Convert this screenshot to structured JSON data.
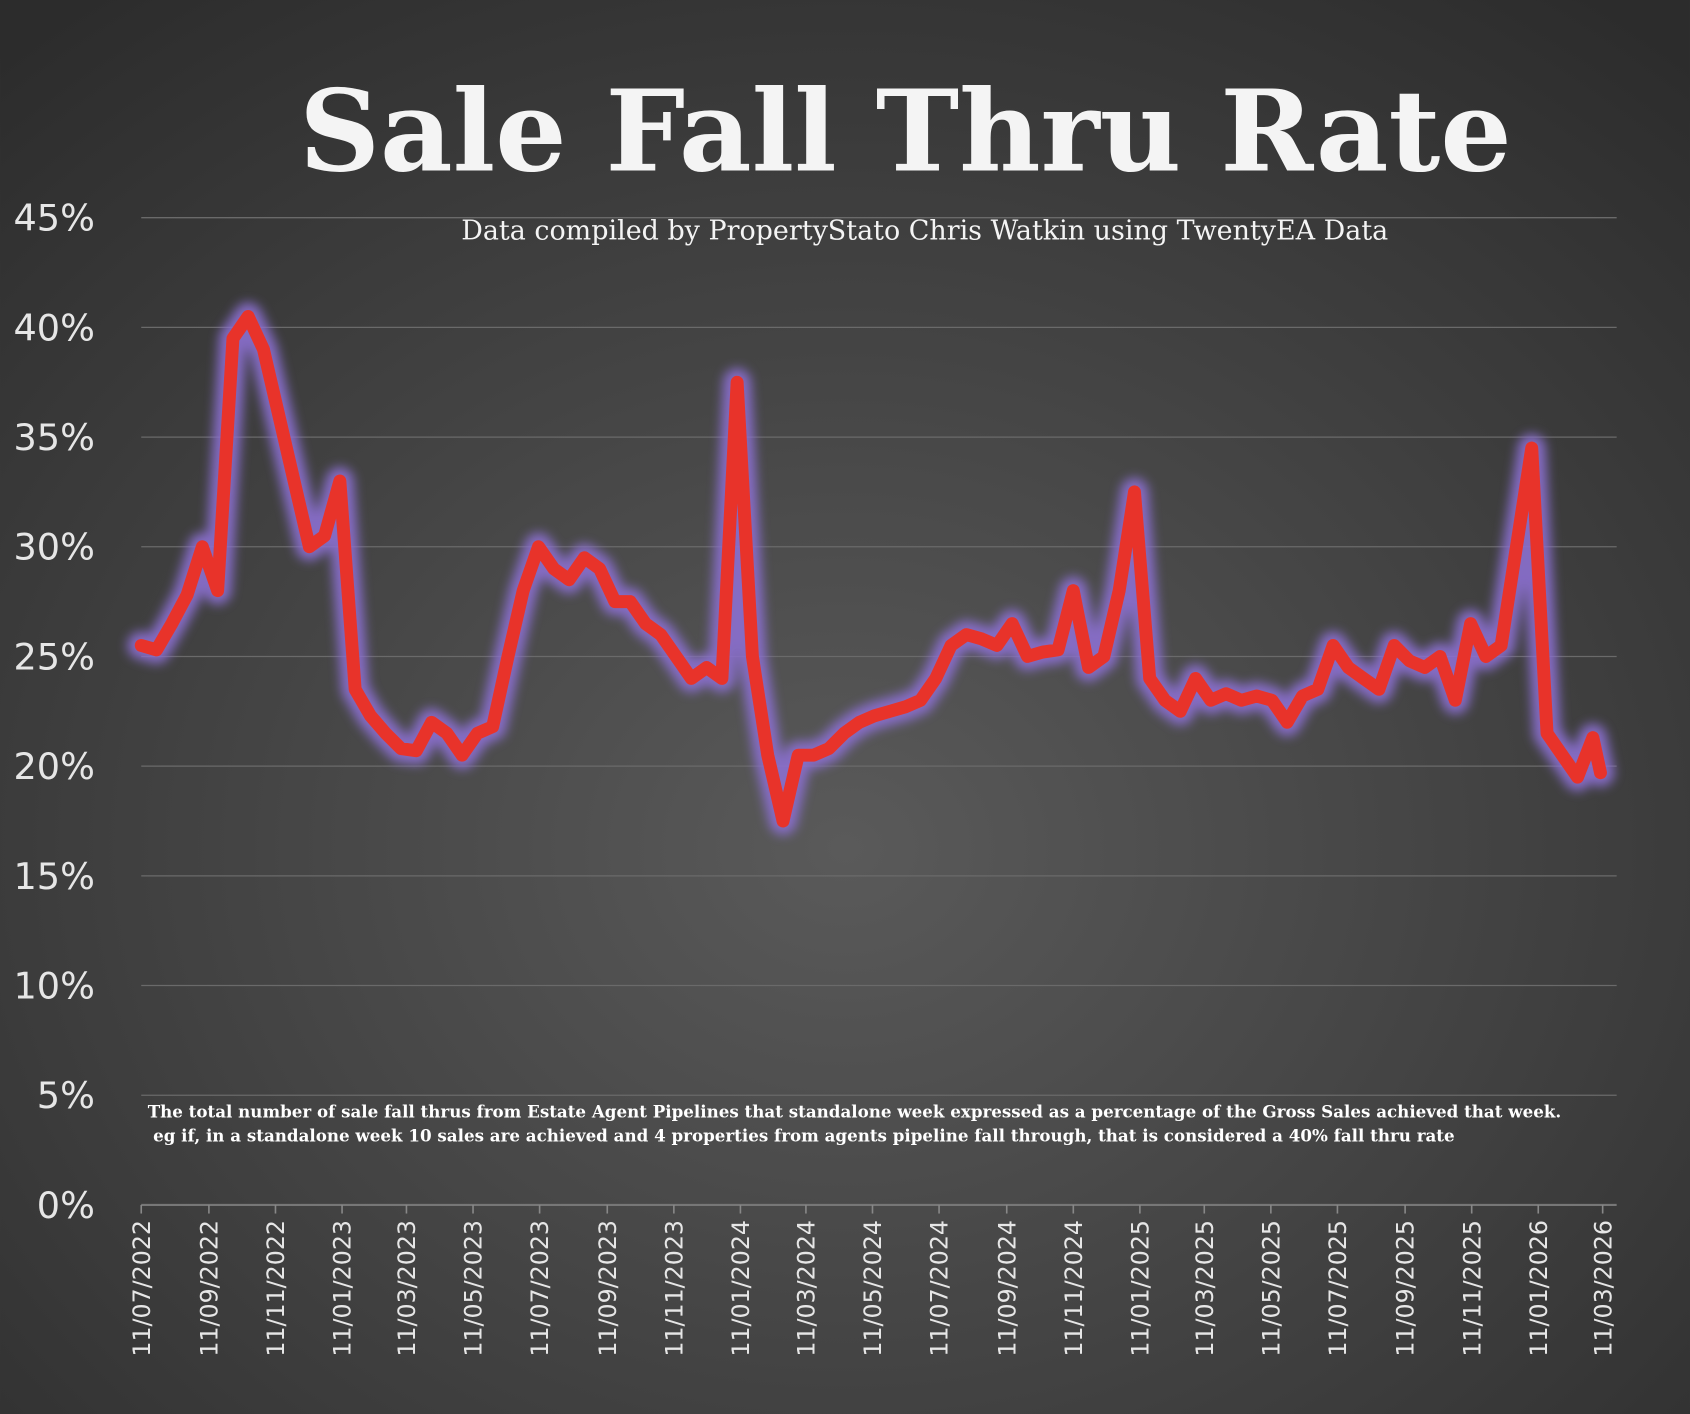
{
  "chart_data": {
    "type": "line",
    "title": "Sale Fall Thru Rate",
    "subtitle": "Data compiled by PropertyStato Chris Watkin using TwentyEA Data",
    "annotations": [
      "The total number of sale fall thrus from Estate Agent Pipelines that standalone week expressed as a percentage of the Gross Sales achieved that week.",
      "eg if, in a standalone week 10 sales are achieved and 4 properties from agents pipeline fall through, that is considered a 40%  fall thru rate"
    ],
    "color": "#e8332a",
    "ylim": [
      0,
      45
    ],
    "yticks": [
      {
        "value": 0,
        "label": "0%"
      },
      {
        "value": 5,
        "label": "5%"
      },
      {
        "value": 10,
        "label": "10%"
      },
      {
        "value": 15,
        "label": "15%"
      },
      {
        "value": 20,
        "label": "20%"
      },
      {
        "value": 25,
        "label": "25%"
      },
      {
        "value": 30,
        "label": "30%"
      },
      {
        "value": 35,
        "label": "35%"
      },
      {
        "value": 40,
        "label": "40%"
      },
      {
        "value": 45,
        "label": "45%"
      }
    ],
    "grid": true,
    "xlim": [
      "11/07/2022",
      "11/03/2026"
    ],
    "xticks": [
      "11/07/2022",
      "11/09/2022",
      "11/11/2022",
      "11/01/2023",
      "11/03/2023",
      "11/05/2023",
      "11/07/2023",
      "11/09/2023",
      "11/11/2023",
      "11/01/2024",
      "11/03/2024",
      "11/05/2024",
      "11/07/2024",
      "11/09/2024",
      "11/11/2024",
      "11/01/2025",
      "11/03/2025",
      "11/05/2025",
      "11/07/2025",
      "11/09/2025",
      "11/11/2025",
      "11/01/2026",
      "11/03/2026"
    ],
    "x": [
      "11/07/2022",
      "25/07/2022",
      "08/08/2022",
      "22/08/2022",
      "05/09/2022",
      "19/09/2022",
      "03/10/2022",
      "17/10/2022",
      "31/10/2022",
      "14/11/2022",
      "28/11/2022",
      "12/12/2022",
      "26/12/2022",
      "09/01/2023",
      "23/01/2023",
      "06/02/2023",
      "20/02/2023",
      "06/03/2023",
      "20/03/2023",
      "03/04/2023",
      "17/04/2023",
      "01/05/2023",
      "15/05/2023",
      "29/05/2023",
      "12/06/2023",
      "26/06/2023",
      "10/07/2023",
      "24/07/2023",
      "07/08/2023",
      "21/08/2023",
      "04/09/2023",
      "18/09/2023",
      "02/10/2023",
      "16/10/2023",
      "30/10/2023",
      "13/11/2023",
      "27/11/2023",
      "11/12/2023",
      "25/12/2023",
      "08/01/2024",
      "22/01/2024",
      "05/02/2024",
      "19/02/2024",
      "04/03/2024",
      "18/03/2024",
      "01/04/2024",
      "15/04/2024",
      "29/04/2024",
      "13/05/2024",
      "27/05/2024",
      "10/06/2024",
      "24/06/2024",
      "08/07/2024",
      "22/07/2024",
      "05/08/2024",
      "19/08/2024",
      "02/09/2024",
      "16/09/2024",
      "30/09/2024",
      "14/10/2024",
      "28/10/2024",
      "11/11/2024",
      "25/11/2024",
      "09/12/2024",
      "23/12/2024",
      "06/01/2025",
      "20/01/2025",
      "03/02/2025",
      "17/02/2025",
      "03/03/2025",
      "17/03/2025",
      "31/03/2025",
      "14/04/2025",
      "28/04/2025",
      "12/05/2025",
      "26/05/2025",
      "09/06/2025",
      "23/06/2025",
      "07/07/2025",
      "21/07/2025",
      "04/08/2025",
      "18/08/2025",
      "01/09/2025",
      "15/09/2025",
      "29/09/2025",
      "13/10/2025",
      "27/10/2025",
      "10/11/2025",
      "24/11/2025",
      "08/12/2025",
      "22/12/2025",
      "05/01/2026",
      "19/01/2026",
      "02/02/2026",
      "16/02/2026",
      "02/03/2026",
      "09/03/2026"
    ],
    "values": [
      25.5,
      25.3,
      26.5,
      27.8,
      30,
      28,
      39.5,
      40.5,
      39,
      36,
      33,
      30,
      30.5,
      33,
      23.5,
      22.3,
      21.5,
      20.8,
      20.7,
      22,
      21.5,
      20.5,
      21.5,
      21.8,
      25,
      28,
      30,
      29,
      28.5,
      29.5,
      29,
      27.5,
      27.5,
      26.5,
      26,
      25,
      24,
      24.5,
      24,
      37.5,
      25,
      20.5,
      17.5,
      20.5,
      20.5,
      20.8,
      21.5,
      22,
      22.3,
      22.5,
      22.7,
      23,
      24,
      25.5,
      26,
      25.8,
      25.5,
      26.5,
      25,
      25.2,
      25.3,
      28,
      24.5,
      25,
      28,
      32.5,
      24,
      23,
      22.5,
      24,
      23,
      23.3,
      23,
      23.2,
      23,
      22,
      23.2,
      23.5,
      25.5,
      24.5,
      24,
      23.5,
      25.5,
      24.8,
      24.5,
      25,
      23,
      26.5,
      25,
      25.5,
      30,
      34.5,
      21.5,
      20.5,
      19.5,
      21.3,
      19.7
    ]
  }
}
